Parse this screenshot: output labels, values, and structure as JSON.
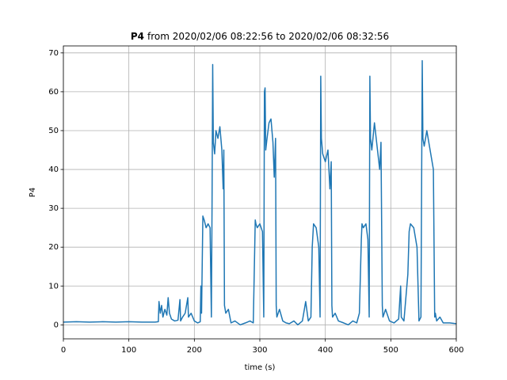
{
  "chart_data": {
    "type": "line",
    "title_parts": [
      "P4",
      "from 2020/02/06 08:22:56 to 2020/02/06 08:32:56"
    ],
    "x_label": "time (s)",
    "y_label": "P4",
    "x": [
      0,
      20,
      40,
      60,
      80,
      100,
      120,
      140,
      145,
      146,
      148,
      150,
      152,
      155,
      158,
      160,
      162,
      165,
      170,
      175,
      178,
      179,
      182,
      186,
      190,
      191,
      195,
      200,
      205,
      209,
      210,
      211,
      213,
      215,
      218,
      221,
      224,
      226,
      227,
      228,
      229,
      231,
      233,
      236,
      239,
      242,
      244,
      245,
      246,
      248,
      252,
      256,
      262,
      270,
      278,
      285,
      290,
      293,
      294,
      296,
      300,
      304,
      306,
      307,
      308,
      309,
      311,
      314,
      317,
      320,
      322,
      324,
      325,
      326,
      330,
      335,
      340,
      345,
      352,
      358,
      365,
      370,
      374,
      378,
      380,
      382,
      386,
      390,
      392,
      393,
      394,
      396,
      400,
      404,
      407,
      409,
      410,
      411,
      415,
      420,
      428,
      435,
      442,
      448,
      452,
      455,
      456,
      458,
      462,
      465,
      467,
      468,
      469,
      471,
      475,
      479,
      483,
      485,
      487,
      488,
      492,
      498,
      505,
      512,
      515,
      516,
      520,
      526,
      528,
      530,
      535,
      540,
      543,
      546,
      548,
      549,
      551,
      555,
      560,
      565,
      567,
      568,
      570,
      575,
      580,
      590,
      600
    ],
    "series": [
      {
        "name": "P4",
        "color": "#1f77b4",
        "values": [
          0.7,
          0.8,
          0.7,
          0.8,
          0.7,
          0.8,
          0.7,
          0.7,
          0.8,
          6,
          3,
          5,
          2,
          4,
          2.5,
          7,
          3,
          1.5,
          1,
          1.2,
          6.5,
          1,
          2,
          3,
          7,
          2,
          3,
          1,
          0.5,
          0.8,
          10,
          3,
          28,
          27,
          25,
          26,
          25,
          2,
          30,
          67,
          47,
          44,
          50,
          48,
          51,
          45,
          35,
          45,
          5,
          3,
          4,
          0.5,
          1,
          0,
          0.5,
          1,
          0.5,
          27,
          26,
          25,
          26,
          24,
          2,
          60,
          61,
          45,
          48,
          52,
          53,
          47,
          38,
          48,
          5,
          2,
          4,
          1,
          0.5,
          0.3,
          1,
          0,
          1,
          6,
          1,
          2,
          20,
          26,
          25,
          20,
          2,
          64,
          48,
          44,
          42,
          45,
          35,
          42,
          5,
          2,
          3,
          1,
          0.5,
          0,
          1,
          0.5,
          3,
          22,
          26,
          25,
          26,
          22,
          2,
          64,
          48,
          45,
          52,
          46,
          40,
          47,
          5,
          2,
          4,
          1,
          0.5,
          1.5,
          10,
          2,
          1,
          13,
          24,
          26,
          25,
          20,
          1,
          2,
          68,
          48,
          46,
          50,
          45,
          40,
          2,
          3,
          1,
          2,
          0.5,
          0.5,
          0.3
        ]
      }
    ],
    "xlim": [
      0,
      600
    ],
    "xticks": [
      0,
      100,
      200,
      300,
      400,
      500,
      600
    ],
    "ylim": [
      -3.6,
      71.8
    ],
    "yticks": [
      0,
      10,
      20,
      30,
      40,
      50,
      60,
      70
    ],
    "grid": true
  }
}
